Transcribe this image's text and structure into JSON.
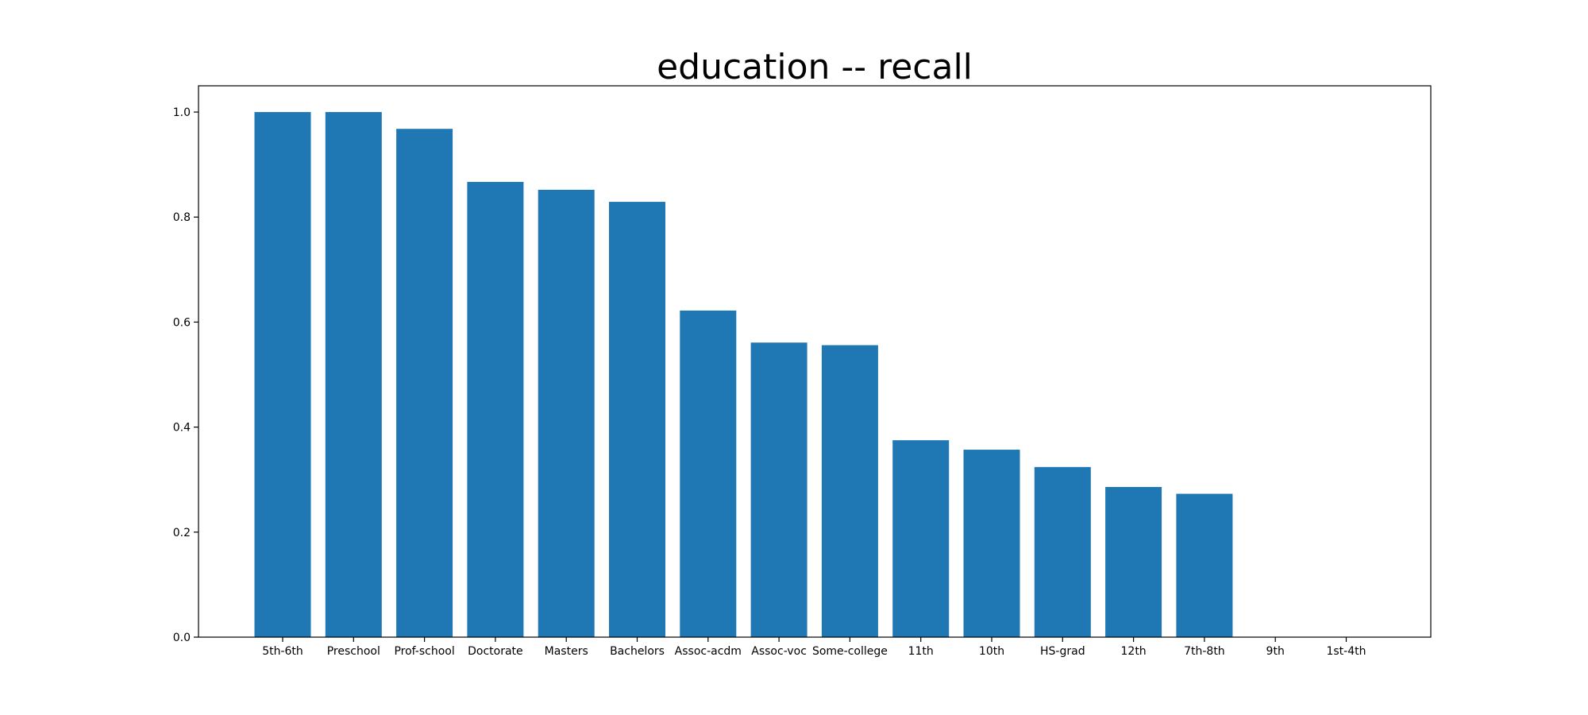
{
  "chart_data": {
    "type": "bar",
    "title": "education -- recall",
    "xlabel": "",
    "ylabel": "",
    "categories": [
      "5th-6th",
      "Preschool",
      "Prof-school",
      "Doctorate",
      "Masters",
      "Bachelors",
      "Assoc-acdm",
      "Assoc-voc",
      "Some-college",
      "11th",
      "10th",
      "HS-grad",
      "12th",
      "7th-8th",
      "9th",
      "1st-4th"
    ],
    "values": [
      1.0,
      1.0,
      0.968,
      0.867,
      0.852,
      0.829,
      0.622,
      0.561,
      0.556,
      0.375,
      0.357,
      0.324,
      0.286,
      0.273,
      0.0,
      0.0
    ],
    "ylim": [
      0,
      1.05
    ],
    "yticks": [
      "0.0",
      "0.2",
      "0.4",
      "0.6",
      "0.8",
      "1.0"
    ],
    "grid": false,
    "bar_color": "#1f77b4"
  }
}
